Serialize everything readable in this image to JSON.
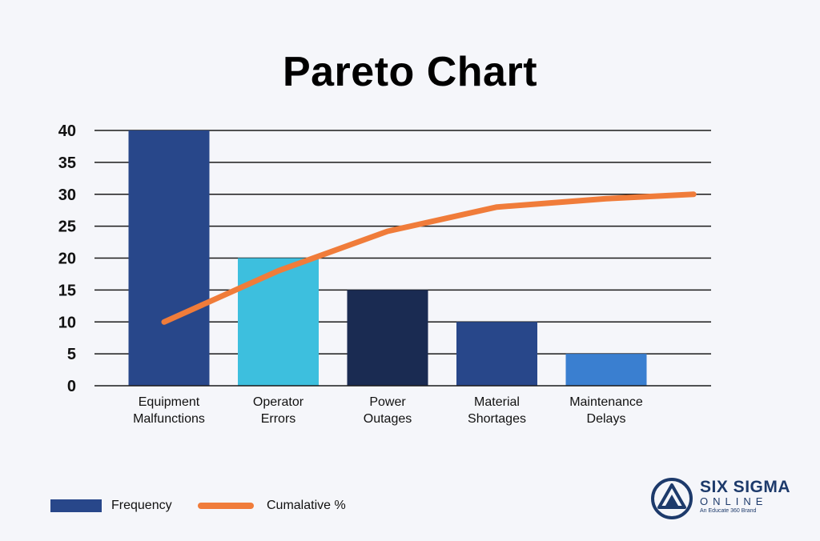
{
  "chart_data": {
    "type": "bar",
    "title": "Pareto Chart",
    "xlabel": "",
    "ylabel": "",
    "ylim": [
      0,
      40
    ],
    "yticks": [
      "0",
      "5",
      "10",
      "15",
      "20",
      "25",
      "30",
      "35",
      "40"
    ],
    "categories": [
      [
        "Equipment",
        "Malfunctions"
      ],
      [
        "Operator",
        "Errors"
      ],
      [
        "Power",
        "Outages"
      ],
      [
        "Material",
        "Shortages"
      ],
      [
        "Maintenance",
        "Delays"
      ]
    ],
    "series": [
      {
        "name": "Frequency",
        "kind": "bar",
        "values": [
          40,
          20,
          15,
          10,
          5
        ],
        "colors": [
          "#28478a",
          "#3dbfde",
          "#1a2b52",
          "#28478a",
          "#3a7fd0"
        ]
      },
      {
        "name": "Cumalative %",
        "kind": "line",
        "color": "#f07c3a",
        "x": [
          0,
          1,
          2,
          3,
          4,
          4.8
        ],
        "values": [
          10,
          18,
          24.2,
          28,
          29.3,
          30
        ]
      }
    ],
    "grid": true,
    "legend_position": "bottom-left"
  },
  "legend": {
    "bar_label": "Frequency",
    "line_label": "Cumalative %"
  },
  "logo": {
    "main": "SIX SIGMA",
    "sub": "ONLINE",
    "tagline": "An Educate 360 Brand"
  }
}
